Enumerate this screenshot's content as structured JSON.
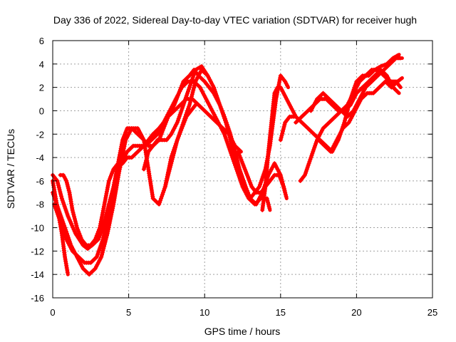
{
  "chart_data": {
    "type": "scatter",
    "title": "Day 336 of 2022, Sidereal Day-to-day VTEC variation (SDTVAR) for receiver hugh",
    "xlabel": "GPS time / hours",
    "ylabel": "SDTVAR / TECUs",
    "xlim": [
      0,
      25
    ],
    "ylim": [
      -16,
      6
    ],
    "xticks": [
      "0",
      "5",
      "10",
      "15",
      "20",
      "25"
    ],
    "yticks": [
      "-16",
      "-14",
      "-12",
      "-10",
      "-8",
      "-6",
      "-4",
      "-2",
      "0",
      "2",
      "4",
      "6"
    ],
    "grid": true,
    "legend": "none",
    "marker": "plus",
    "color": "#ff0000",
    "series": [
      {
        "x": [
          0.0,
          0.3,
          0.6,
          1.0,
          1.5,
          2.0,
          2.3,
          2.6,
          3.0,
          3.3,
          3.6,
          4.0,
          4.3,
          4.6,
          4.9,
          5.2,
          5.6,
          6.0,
          6.3,
          6.6,
          7.0,
          7.3,
          7.6,
          8.0,
          8.3,
          8.6,
          9.0,
          9.3,
          9.6,
          10.0,
          10.3,
          10.6,
          11.0,
          11.3,
          11.7,
          12.0,
          12.3,
          12.7,
          13.0,
          13.3,
          13.6,
          14.0,
          14.3,
          14.5,
          14.7,
          15.0,
          15.3,
          15.5
        ],
        "y": [
          -5.5,
          -6.0,
          -7.5,
          -9.0,
          -10.5,
          -11.5,
          -11.8,
          -11.5,
          -11.0,
          -10.0,
          -8.5,
          -6.5,
          -4.5,
          -2.5,
          -1.5,
          -1.5,
          -2.0,
          -2.5,
          -3.0,
          -3.0,
          -2.5,
          -1.5,
          -0.5,
          0.5,
          1.5,
          2.5,
          3.0,
          3.5,
          3.0,
          2.5,
          2.0,
          1.5,
          0.5,
          -0.5,
          -2.0,
          -3.5,
          -5.0,
          -6.5,
          -7.5,
          -7.0,
          -6.5,
          -5.0,
          -3.0,
          -1.0,
          1.0,
          3.0,
          2.5,
          2.0
        ]
      },
      {
        "x": [
          0.0,
          0.4,
          0.8,
          1.2,
          1.6,
          2.0,
          2.4,
          2.8,
          3.2,
          3.6,
          4.0,
          4.4,
          4.8,
          5.2,
          5.6,
          6.0,
          6.3,
          6.6,
          7.0,
          7.4,
          7.8,
          8.2,
          8.6,
          9.0,
          9.4,
          9.8,
          10.2,
          10.6,
          11.0,
          11.4,
          11.8,
          12.2,
          12.6,
          13.0,
          13.4,
          13.8,
          14.2,
          14.6,
          15.0,
          15.3
        ],
        "y": [
          -7.0,
          -8.5,
          -10.0,
          -11.5,
          -12.5,
          -13.5,
          -14.0,
          -13.5,
          -12.5,
          -10.5,
          -8.0,
          -5.0,
          -2.5,
          -1.5,
          -1.5,
          -2.5,
          -5.0,
          -7.5,
          -8.0,
          -6.5,
          -4.0,
          -2.5,
          -1.0,
          0.5,
          2.5,
          3.5,
          3.0,
          2.0,
          0.5,
          -1.0,
          -3.0,
          -5.0,
          -6.5,
          -7.5,
          -8.0,
          -7.0,
          -5.5,
          -4.5,
          -5.5,
          -7.0
        ]
      },
      {
        "x": [
          0.1,
          0.5,
          0.9,
          1.3,
          1.7,
          2.1,
          2.5,
          2.9,
          3.3,
          3.7,
          4.1,
          4.5,
          4.9,
          5.3,
          5.7,
          6.1,
          6.5,
          6.9,
          7.3,
          7.7,
          8.1,
          8.5,
          8.9,
          9.3,
          9.7,
          10.1,
          10.5,
          10.9,
          11.3,
          11.7,
          12.1,
          12.5,
          12.9,
          13.3,
          13.7,
          14.1,
          14.3
        ],
        "y": [
          -8.0,
          -9.5,
          -11.0,
          -12.0,
          -12.5,
          -13.0,
          -13.0,
          -12.5,
          -11.0,
          -9.0,
          -6.5,
          -4.5,
          -3.5,
          -3.0,
          -3.0,
          -3.0,
          -2.5,
          -2.0,
          -1.0,
          0.0,
          1.0,
          2.0,
          2.5,
          2.5,
          2.0,
          1.0,
          0.0,
          -1.0,
          -2.0,
          -3.5,
          -5.0,
          -6.5,
          -7.5,
          -8.0,
          -7.5,
          -7.5,
          -8.5
        ]
      },
      {
        "x": [
          0.5,
          0.7,
          0.9,
          1.1,
          1.3,
          1.6,
          1.9,
          2.2,
          2.5,
          2.8,
          3.1,
          3.4,
          3.7,
          4.0,
          4.3,
          4.6,
          4.9,
          5.2,
          5.6,
          6.0,
          6.3,
          6.6,
          7.0,
          7.3,
          7.6,
          8.0,
          8.4,
          8.8,
          9.2,
          9.6,
          10.0,
          10.4,
          10.8,
          11.2,
          11.6,
          12.0,
          12.4
        ],
        "y": [
          -5.5,
          -5.5,
          -6.0,
          -7.0,
          -8.5,
          -10.0,
          -11.0,
          -11.5,
          -11.5,
          -11.0,
          -10.0,
          -8.0,
          -6.0,
          -5.0,
          -4.5,
          -4.5,
          -4.0,
          -4.0,
          -3.5,
          -3.0,
          -2.5,
          -2.0,
          -1.5,
          -1.0,
          -0.5,
          0.0,
          0.5,
          1.0,
          1.0,
          0.5,
          0.0,
          -0.5,
          -1.0,
          -1.5,
          -2.0,
          -3.0,
          -3.5
        ]
      },
      {
        "x": [
          0.0,
          0.2,
          0.4,
          0.6,
          0.8,
          1.0
        ],
        "y": [
          -6.0,
          -7.5,
          -9.0,
          -10.5,
          -12.5,
          -14.0
        ]
      },
      {
        "x": [
          6.0,
          6.3,
          6.6,
          6.9,
          7.2,
          7.5,
          7.8,
          8.2,
          8.6,
          9.0,
          9.4,
          9.8,
          10.2
        ],
        "y": [
          -5.0,
          -3.5,
          -3.0,
          -2.5,
          -2.5,
          -2.5,
          -2.0,
          -1.0,
          0.5,
          2.0,
          3.5,
          3.8,
          3.0
        ]
      },
      {
        "x": [
          7.4,
          7.6,
          7.8,
          8.0,
          8.2,
          8.5,
          8.8,
          9.1,
          9.4
        ],
        "y": [
          -6.5,
          -5.5,
          -4.5,
          -3.5,
          -2.5,
          -1.5,
          -0.5,
          0.0,
          0.5
        ]
      },
      {
        "x": [
          16.3,
          16.6,
          17.0,
          17.4,
          17.8,
          18.2,
          18.6,
          19.0,
          19.4,
          19.8,
          20.2,
          20.6,
          21.0,
          21.4,
          21.8,
          22.2,
          22.6,
          22.9
        ],
        "y": [
          -6.0,
          -5.5,
          -4.0,
          -2.5,
          -1.5,
          -1.0,
          -0.5,
          0.0,
          0.5,
          1.5,
          2.5,
          3.0,
          3.5,
          3.5,
          3.0,
          2.5,
          2.5,
          2.0
        ]
      },
      {
        "x": [
          15.0,
          15.3,
          15.6,
          16.0,
          16.4,
          16.8,
          17.2,
          17.6,
          18.0,
          18.4,
          18.8,
          19.2,
          19.6,
          20.0,
          20.4,
          20.8,
          21.2,
          21.6,
          22.0,
          22.4,
          22.8
        ],
        "y": [
          -2.5,
          -1.0,
          -0.5,
          -0.5,
          -1.0,
          -1.5,
          -2.0,
          -2.5,
          -3.0,
          -3.5,
          -2.5,
          -1.0,
          1.0,
          2.5,
          3.0,
          3.0,
          3.5,
          3.8,
          4.0,
          4.5,
          4.8
        ]
      },
      {
        "x": [
          16.0,
          16.4,
          16.8,
          17.2,
          17.6,
          18.0,
          18.4,
          18.8,
          19.2,
          19.6,
          20.0,
          20.4,
          20.8,
          21.2,
          21.6,
          22.0,
          22.4,
          22.8
        ],
        "y": [
          -1.0,
          -0.5,
          0.0,
          0.5,
          1.0,
          1.0,
          0.5,
          0.0,
          0.0,
          0.5,
          1.5,
          2.0,
          2.5,
          3.0,
          3.5,
          3.0,
          2.0,
          1.5
        ]
      },
      {
        "x": [
          17.0,
          17.4,
          17.8,
          18.2,
          18.6,
          19.0,
          19.4,
          19.8,
          20.2,
          20.6,
          21.0,
          21.4,
          21.8,
          22.2,
          22.6,
          23.0
        ],
        "y": [
          0.0,
          1.0,
          1.5,
          1.0,
          0.5,
          0.0,
          -0.5,
          0.0,
          1.0,
          2.0,
          2.5,
          3.0,
          3.5,
          4.0,
          4.5,
          4.5
        ]
      },
      {
        "x": [
          17.5,
          17.9,
          18.3,
          18.7,
          19.1,
          19.5,
          19.9,
          20.3,
          20.7,
          21.1,
          21.5,
          21.9,
          22.3,
          22.7,
          23.0
        ],
        "y": [
          -2.5,
          -3.0,
          -3.5,
          -2.5,
          -1.5,
          -1.0,
          0.0,
          1.0,
          1.5,
          1.5,
          2.0,
          2.5,
          2.0,
          2.5,
          2.8
        ]
      },
      {
        "x": [
          12.2,
          12.5,
          12.8,
          13.1,
          13.4,
          13.7,
          14.0,
          14.3,
          14.6,
          14.9,
          15.2,
          15.4
        ],
        "y": [
          -3.5,
          -4.5,
          -5.5,
          -6.5,
          -7.0,
          -7.0,
          -6.5,
          -6.0,
          -5.5,
          -5.5,
          -6.5,
          -7.5
        ]
      },
      {
        "x": [
          13.8,
          14.0,
          14.2,
          14.4,
          14.6,
          14.8,
          15.0,
          15.2,
          15.4,
          15.6,
          15.8,
          16.0
        ],
        "y": [
          -8.5,
          -6.5,
          -3.5,
          -1.0,
          1.5,
          2.0,
          2.0,
          1.5,
          1.0,
          0.5,
          0.0,
          -0.5
        ]
      }
    ]
  }
}
